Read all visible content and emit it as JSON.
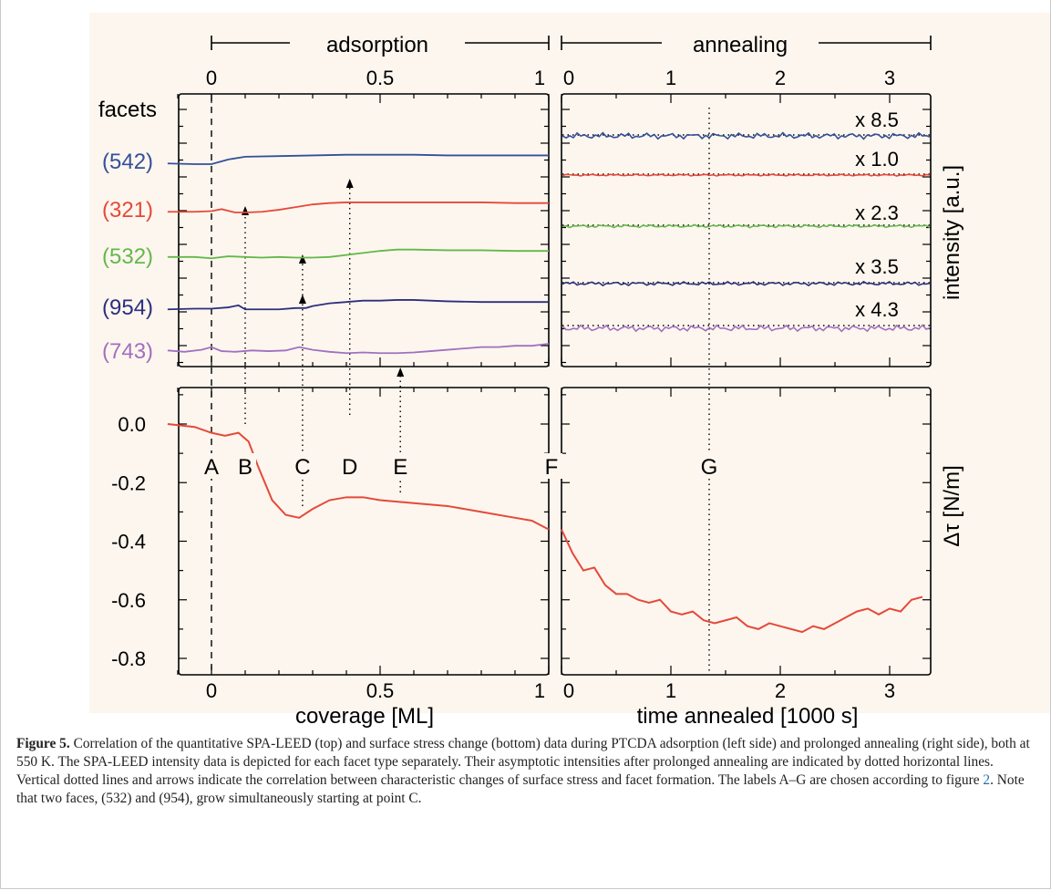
{
  "caption": {
    "label": "Figure 5.",
    "text_before_link": " Correlation of the quantitative SPA-LEED (top) and surface stress change (bottom) data during PTCDA adsorption (left side) and prolonged annealing (right side), both at 550 K. The SPA-LEED intensity data is depicted for each facet type separately. Their asymptotic intensities after prolonged annealing are indicated by dotted horizontal lines. Vertical dotted lines and arrows indicate the correlation between characteristic changes of surface stress and facet formation. The labels A–G are chosen according to figure ",
    "link_text": "2",
    "text_after_link": ". Note that two faces, (532) and (954), grow simultaneously starting at point C."
  },
  "chart_data": [
    {
      "type": "line",
      "panel": "top-left",
      "header": "adsorption",
      "x_tick_labels": [
        "0",
        "0.5",
        "1"
      ],
      "xlim": [
        -0.13,
        1.0
      ],
      "column_title": "facets",
      "series": [
        {
          "name": "(542)",
          "color": "#33509a",
          "values": {
            "x": [
              -0.13,
              -0.05,
              0.0,
              0.05,
              0.1,
              0.2,
              0.3,
              0.4,
              0.5,
              0.6,
              0.7,
              0.8,
              0.9,
              1.0
            ],
            "y": [
              0.86,
              0.85,
              0.85,
              0.92,
              0.96,
              0.97,
              0.98,
              0.99,
              0.99,
              0.99,
              0.98,
              0.98,
              0.98,
              0.98
            ]
          }
        },
        {
          "name": "(321)",
          "color": "#e5493a",
          "values": {
            "x": [
              -0.13,
              -0.05,
              0.0,
              0.03,
              0.07,
              0.1,
              0.15,
              0.2,
              0.25,
              0.3,
              0.35,
              0.4,
              0.5,
              0.6,
              0.7,
              0.8,
              0.9,
              1.0
            ],
            "y": [
              0.86,
              0.86,
              0.87,
              0.9,
              0.85,
              0.85,
              0.86,
              0.89,
              0.93,
              0.97,
              0.99,
              1.0,
              1.0,
              1.0,
              1.0,
              1.0,
              0.99,
              0.99
            ]
          }
        },
        {
          "name": "(532)",
          "color": "#63b84a",
          "values": {
            "x": [
              -0.13,
              -0.05,
              0.0,
              0.05,
              0.1,
              0.15,
              0.2,
              0.25,
              0.3,
              0.35,
              0.4,
              0.45,
              0.5,
              0.55,
              0.6,
              0.7,
              0.8,
              0.9,
              1.0
            ],
            "y": [
              0.88,
              0.88,
              0.86,
              0.89,
              0.88,
              0.87,
              0.88,
              0.87,
              0.87,
              0.88,
              0.91,
              0.94,
              0.97,
              0.99,
              0.99,
              0.98,
              0.98,
              0.97,
              0.97
            ]
          }
        },
        {
          "name": "(954)",
          "color": "#2c2f7e",
          "values": {
            "x": [
              -0.13,
              -0.05,
              0.0,
              0.05,
              0.08,
              0.1,
              0.15,
              0.2,
              0.25,
              0.28,
              0.3,
              0.35,
              0.4,
              0.45,
              0.5,
              0.55,
              0.6,
              0.7,
              0.8,
              0.9,
              1.0
            ],
            "y": [
              0.86,
              0.87,
              0.87,
              0.89,
              0.92,
              0.86,
              0.86,
              0.86,
              0.88,
              0.88,
              0.91,
              0.95,
              0.97,
              0.99,
              0.99,
              1.0,
              1.0,
              0.98,
              0.97,
              0.97,
              0.97
            ]
          }
        },
        {
          "name": "(743)",
          "color": "#a070c0",
          "values": {
            "x": [
              -0.13,
              -0.08,
              -0.03,
              0.0,
              0.03,
              0.07,
              0.12,
              0.17,
              0.22,
              0.26,
              0.3,
              0.35,
              0.4,
              0.45,
              0.5,
              0.55,
              0.6,
              0.65,
              0.7,
              0.75,
              0.8,
              0.85,
              0.9,
              0.95,
              1.0
            ],
            "y": [
              0.9,
              0.88,
              0.91,
              0.95,
              0.89,
              0.88,
              0.9,
              0.89,
              0.9,
              0.95,
              0.91,
              0.88,
              0.86,
              0.87,
              0.86,
              0.86,
              0.87,
              0.89,
              0.91,
              0.93,
              0.95,
              0.95,
              0.97,
              0.97,
              1.0
            ]
          }
        }
      ]
    },
    {
      "type": "line",
      "panel": "top-right",
      "header": "annealing",
      "x_tick_labels": [
        "0",
        "1",
        "2",
        "3"
      ],
      "xlim": [
        0,
        3.3
      ],
      "ylabel": "intensity [a.u.]",
      "scale_labels": [
        "x 8.5",
        "x 1.0",
        "x 2.3",
        "x 3.5",
        "x 4.3"
      ],
      "series": [
        {
          "name": "(542)",
          "color": "#33509a"
        },
        {
          "name": "(321)",
          "color": "#e5493a"
        },
        {
          "name": "(532)",
          "color": "#63b84a"
        },
        {
          "name": "(954)",
          "color": "#2c2f7e"
        },
        {
          "name": "(743)",
          "color": "#a070c0"
        }
      ]
    },
    {
      "type": "line",
      "panel": "bottom",
      "xlabel_left": "coverage [ML]",
      "xlabel_right": "time annealed [1000 s]",
      "ylabel": "Δτ [N/m]",
      "y_tick_labels": [
        "0.0",
        "-0.2",
        "-0.4",
        "-0.6",
        "-0.8"
      ],
      "ylim": [
        -0.8,
        0.1
      ],
      "point_labels": [
        "A",
        "B",
        "C",
        "D",
        "E",
        "F",
        "G"
      ],
      "adsorption": {
        "x": [
          -0.13,
          -0.05,
          0.0,
          0.04,
          0.08,
          0.11,
          0.14,
          0.18,
          0.22,
          0.26,
          0.3,
          0.35,
          0.4,
          0.45,
          0.5,
          0.6,
          0.7,
          0.8,
          0.9,
          0.95,
          1.0
        ],
        "y": [
          0.0,
          -0.01,
          -0.03,
          -0.04,
          -0.03,
          -0.06,
          -0.15,
          -0.26,
          -0.31,
          -0.32,
          -0.29,
          -0.26,
          -0.25,
          -0.25,
          -0.26,
          -0.27,
          -0.28,
          -0.3,
          -0.32,
          -0.33,
          -0.36
        ]
      },
      "annealing": {
        "x": [
          0.0,
          0.1,
          0.2,
          0.3,
          0.4,
          0.5,
          0.6,
          0.7,
          0.8,
          0.9,
          1.0,
          1.1,
          1.2,
          1.3,
          1.4,
          1.5,
          1.6,
          1.7,
          1.8,
          1.9,
          2.0,
          2.1,
          2.2,
          2.3,
          2.4,
          2.5,
          2.6,
          2.7,
          2.8,
          2.9,
          3.0,
          3.1,
          3.2,
          3.3
        ],
        "y": [
          -0.36,
          -0.44,
          -0.5,
          -0.49,
          -0.55,
          -0.58,
          -0.58,
          -0.6,
          -0.61,
          -0.6,
          -0.64,
          -0.65,
          -0.64,
          -0.67,
          -0.68,
          -0.67,
          -0.66,
          -0.69,
          -0.7,
          -0.68,
          -0.69,
          -0.7,
          -0.71,
          -0.69,
          -0.7,
          -0.68,
          -0.66,
          -0.64,
          -0.63,
          -0.65,
          -0.63,
          -0.64,
          -0.6,
          -0.59
        ]
      }
    }
  ]
}
